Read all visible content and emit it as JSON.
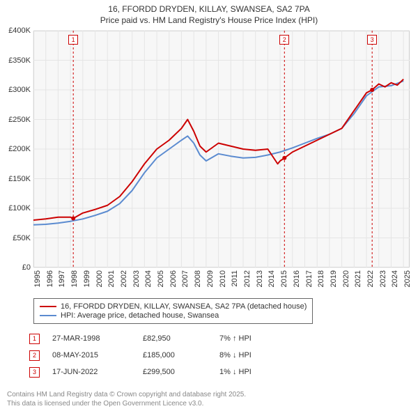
{
  "title_line1": "16, FFORDD DRYDEN, KILLAY, SWANSEA, SA2 7PA",
  "title_line2": "Price paid vs. HM Land Registry's House Price Index (HPI)",
  "chart": {
    "type": "line",
    "background": "#f7f7f7",
    "border_color": "#cccccc",
    "grid_color": "#e5e5e5",
    "x_years": [
      1995,
      1996,
      1997,
      1998,
      1999,
      2000,
      2001,
      2002,
      2003,
      2004,
      2005,
      2006,
      2007,
      2008,
      2009,
      2010,
      2011,
      2012,
      2013,
      2014,
      2015,
      2016,
      2017,
      2018,
      2019,
      2020,
      2021,
      2022,
      2023,
      2024,
      2025
    ],
    "y_ticks": [
      0,
      50,
      100,
      150,
      200,
      250,
      300,
      350,
      400
    ],
    "y_tick_labels": [
      "£0",
      "£50K",
      "£100K",
      "£150K",
      "£200K",
      "£250K",
      "£300K",
      "£350K",
      "£400K"
    ],
    "ylim": [
      0,
      400
    ],
    "xlim": [
      1995,
      2025.5
    ],
    "series": [
      {
        "name": "price_paid",
        "color": "#cc0000",
        "width": 2,
        "points": [
          [
            1995,
            80
          ],
          [
            1996,
            82
          ],
          [
            1997,
            85
          ],
          [
            1998,
            85
          ],
          [
            1998.23,
            83
          ],
          [
            1999,
            92
          ],
          [
            2000,
            98
          ],
          [
            2001,
            105
          ],
          [
            2002,
            120
          ],
          [
            2003,
            145
          ],
          [
            2004,
            175
          ],
          [
            2005,
            200
          ],
          [
            2006,
            215
          ],
          [
            2007,
            235
          ],
          [
            2007.5,
            250
          ],
          [
            2008,
            230
          ],
          [
            2008.5,
            205
          ],
          [
            2009,
            195
          ],
          [
            2010,
            210
          ],
          [
            2011,
            205
          ],
          [
            2012,
            200
          ],
          [
            2013,
            198
          ],
          [
            2014,
            200
          ],
          [
            2014.8,
            175
          ],
          [
            2015,
            180
          ],
          [
            2015.35,
            185
          ],
          [
            2016,
            195
          ],
          [
            2017,
            205
          ],
          [
            2018,
            215
          ],
          [
            2019,
            225
          ],
          [
            2020,
            235
          ],
          [
            2021,
            265
          ],
          [
            2022,
            295
          ],
          [
            2022.46,
            300
          ],
          [
            2023,
            310
          ],
          [
            2023.5,
            305
          ],
          [
            2024,
            312
          ],
          [
            2024.5,
            308
          ],
          [
            2025,
            318
          ]
        ]
      },
      {
        "name": "hpi",
        "color": "#5b8bd0",
        "width": 2,
        "points": [
          [
            1995,
            72
          ],
          [
            1996,
            73
          ],
          [
            1997,
            75
          ],
          [
            1998,
            78
          ],
          [
            1999,
            82
          ],
          [
            2000,
            88
          ],
          [
            2001,
            95
          ],
          [
            2002,
            108
          ],
          [
            2003,
            130
          ],
          [
            2004,
            160
          ],
          [
            2005,
            185
          ],
          [
            2006,
            200
          ],
          [
            2007,
            215
          ],
          [
            2007.5,
            222
          ],
          [
            2008,
            210
          ],
          [
            2008.5,
            190
          ],
          [
            2009,
            180
          ],
          [
            2010,
            192
          ],
          [
            2011,
            188
          ],
          [
            2012,
            185
          ],
          [
            2013,
            186
          ],
          [
            2014,
            190
          ],
          [
            2015,
            195
          ],
          [
            2016,
            202
          ],
          [
            2017,
            210
          ],
          [
            2018,
            218
          ],
          [
            2019,
            225
          ],
          [
            2020,
            235
          ],
          [
            2021,
            260
          ],
          [
            2022,
            290
          ],
          [
            2023,
            305
          ],
          [
            2024,
            307
          ],
          [
            2025,
            315
          ]
        ]
      }
    ],
    "event_lines": [
      {
        "x": 1998.23,
        "label": "1",
        "color": "#cc0000"
      },
      {
        "x": 2015.35,
        "label": "2",
        "color": "#cc0000"
      },
      {
        "x": 2022.46,
        "label": "3",
        "color": "#cc0000"
      }
    ],
    "event_dash": "3,3",
    "sale_markers": [
      {
        "x": 1998.23,
        "y": 83
      },
      {
        "x": 2015.35,
        "y": 185
      },
      {
        "x": 2022.46,
        "y": 300
      }
    ],
    "marker_radius": 3,
    "marker_color": "#cc0000"
  },
  "legend": {
    "items": [
      {
        "color": "#cc0000",
        "label": "16, FFORDD DRYDEN, KILLAY, SWANSEA, SA2 7PA (detached house)"
      },
      {
        "color": "#5b8bd0",
        "label": "HPI: Average price, detached house, Swansea"
      }
    ]
  },
  "transactions": [
    {
      "n": "1",
      "date": "27-MAR-1998",
      "price": "£82,950",
      "pct": "7% ↑ HPI"
    },
    {
      "n": "2",
      "date": "08-MAY-2015",
      "price": "£185,000",
      "pct": "8% ↓ HPI"
    },
    {
      "n": "3",
      "date": "17-JUN-2022",
      "price": "£299,500",
      "pct": "1% ↓ HPI"
    }
  ],
  "footer_line1": "Contains HM Land Registry data © Crown copyright and database right 2025.",
  "footer_line2": "This data is licensed under the Open Government Licence v3.0."
}
